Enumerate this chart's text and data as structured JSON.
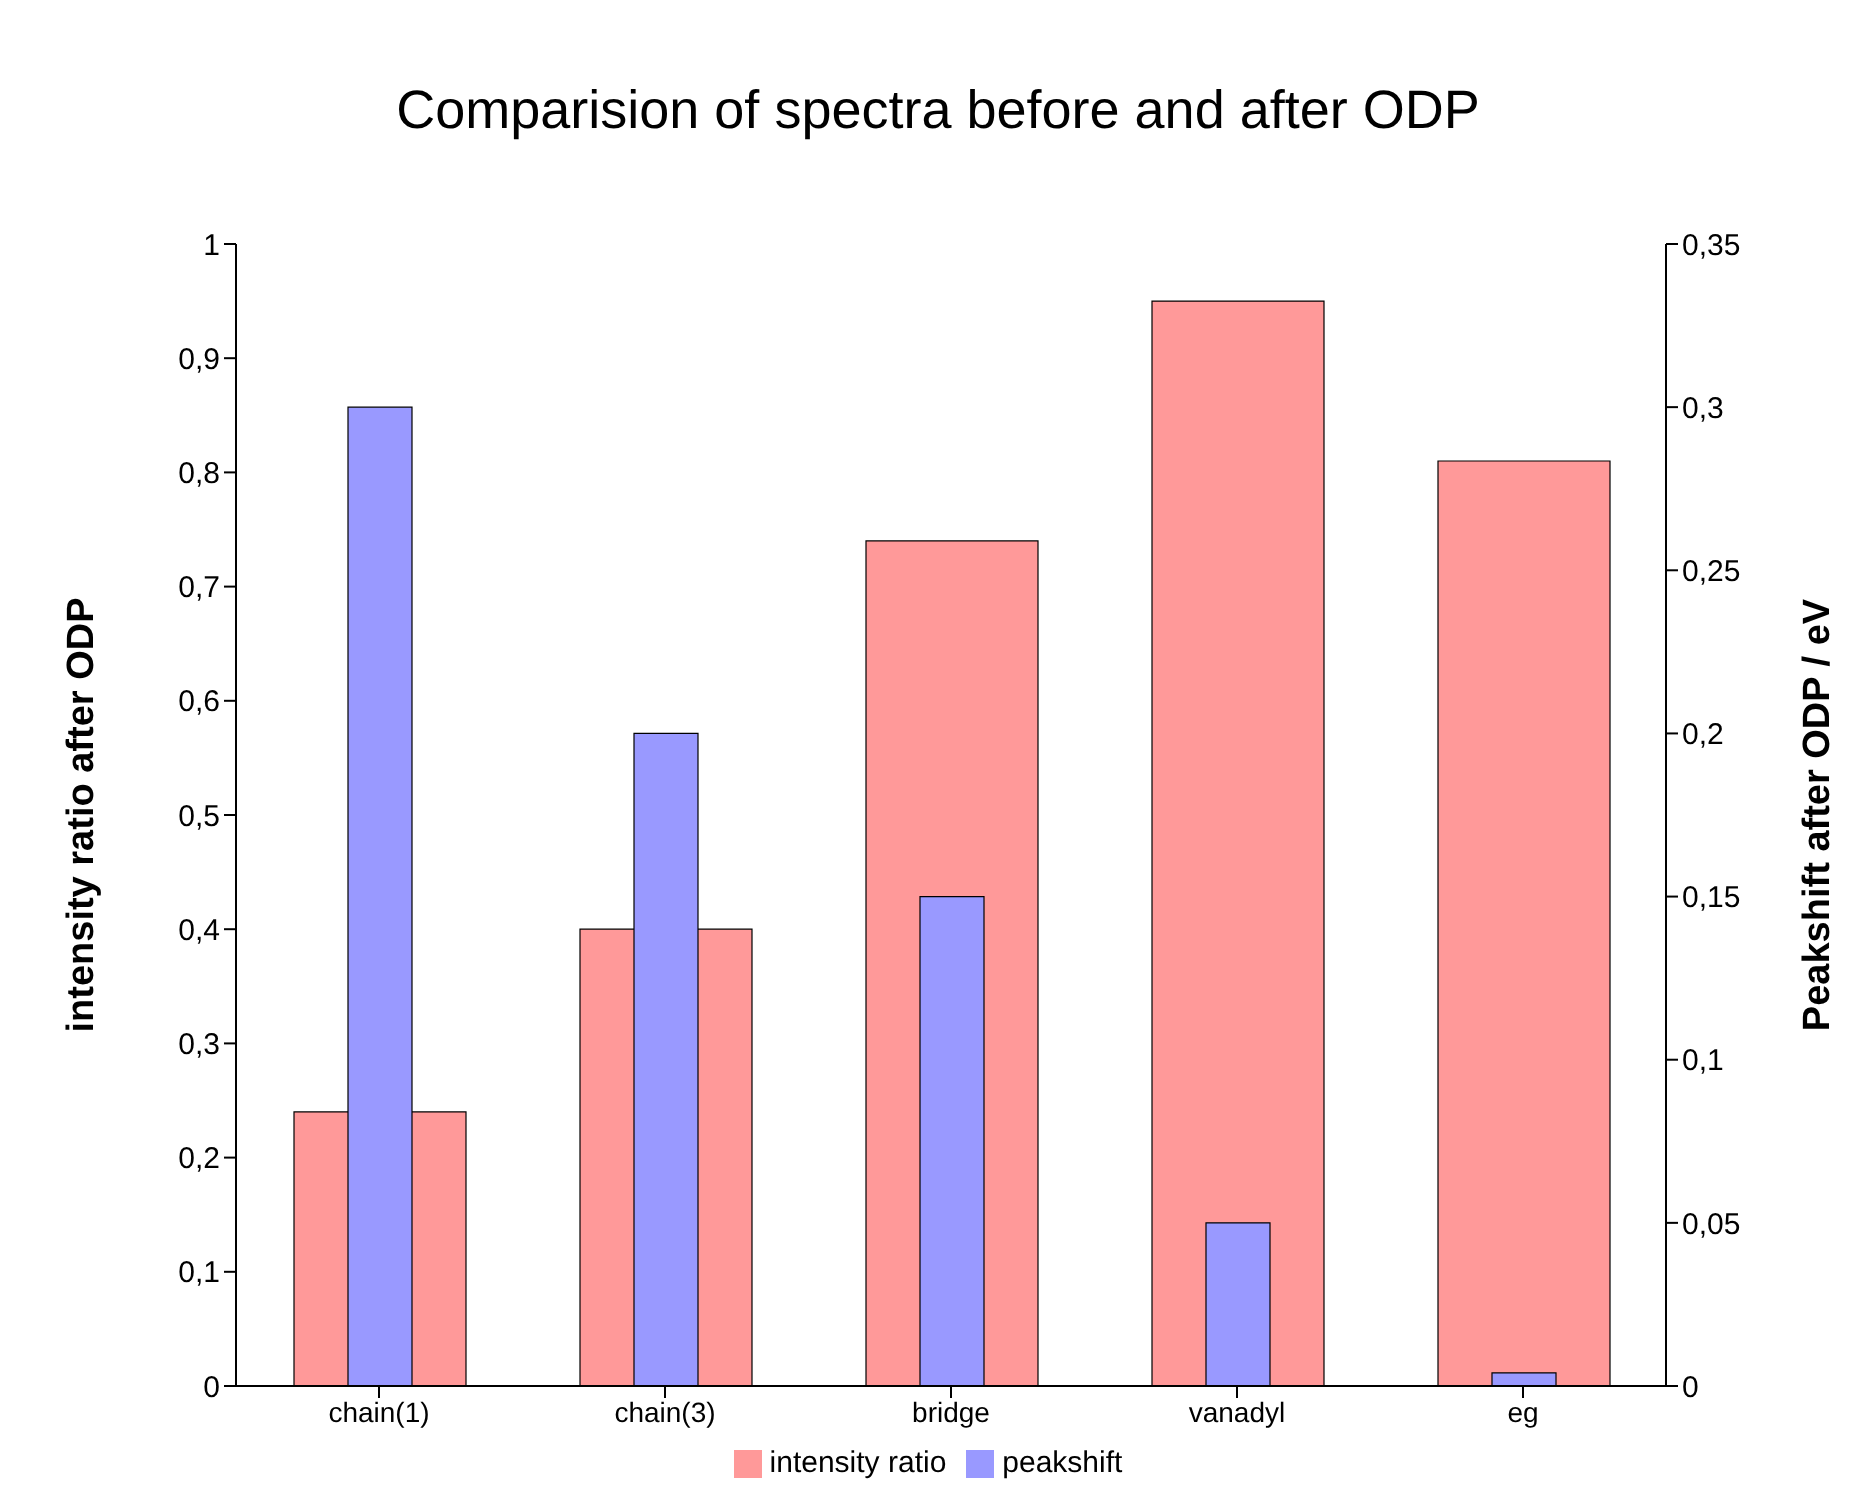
{
  "chart_data": {
    "type": "bar",
    "title": "Comparision of spectra before and after ODP",
    "ylabel": "intensity ratio after ODP",
    "y2label": "Peakshift after ODP / eV",
    "categories": [
      "chain(1)",
      "chain(3)",
      "bridge",
      "vanadyl",
      "eg"
    ],
    "series": [
      {
        "name": "intensity ratio",
        "color": "#ff9999",
        "values": [
          0.24,
          0.4,
          0.74,
          0.95,
          0.81
        ]
      },
      {
        "name": "peakshift",
        "color": "#9999ff",
        "axis": "y2",
        "values": [
          0.3,
          0.2,
          0.15,
          0.05,
          0.004
        ]
      }
    ],
    "ylim": [
      0,
      1
    ],
    "yticks": [
      0,
      {
        "value": 0.1,
        "label": "0,1"
      },
      {
        "value": 0.2,
        "label": "0,2"
      },
      {
        "value": 0.3,
        "label": "0,3"
      },
      {
        "value": 0.4,
        "label": "0,4"
      },
      {
        "value": 0.5,
        "label": "0,5"
      },
      {
        "value": 0.6,
        "label": "0,6"
      },
      {
        "value": 0.7,
        "label": "0,7"
      },
      {
        "value": 0.8,
        "label": "0,8"
      },
      {
        "value": 0.9,
        "label": "0,9"
      },
      1
    ],
    "y2lim": [
      0,
      0.35
    ],
    "y2ticks": [
      0,
      {
        "value": 0.05,
        "label": "0,05"
      },
      {
        "value": 0.1,
        "label": "0,1"
      },
      {
        "value": 0.15,
        "label": "0,15"
      },
      {
        "value": 0.2,
        "label": "0,2"
      },
      {
        "value": 0.25,
        "label": "0,25"
      },
      {
        "value": 0.3,
        "label": "0,3"
      },
      {
        "value": 0.35,
        "label": "0,35"
      }
    ],
    "legend": "bottom"
  }
}
